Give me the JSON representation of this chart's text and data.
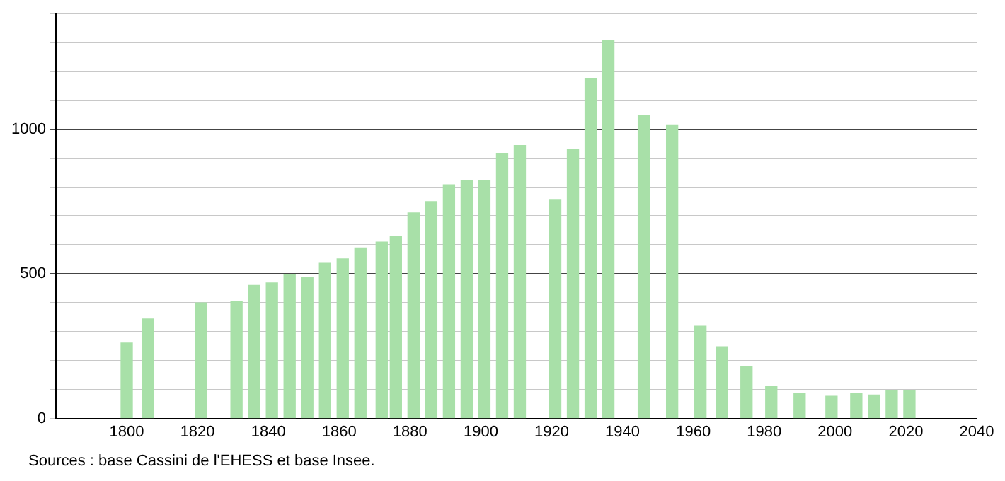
{
  "chart_data": {
    "type": "bar",
    "x": [
      1800,
      1806,
      1821,
      1831,
      1836,
      1841,
      1846,
      1851,
      1856,
      1861,
      1866,
      1872,
      1876,
      1881,
      1886,
      1891,
      1896,
      1901,
      1906,
      1911,
      1921,
      1926,
      1931,
      1936,
      1946,
      1954,
      1962,
      1968,
      1975,
      1982,
      1990,
      1999,
      2006,
      2011,
      2016,
      2021
    ],
    "values": [
      261,
      344,
      400,
      406,
      460,
      469,
      498,
      489,
      537,
      552,
      590,
      610,
      629,
      711,
      750,
      808,
      823,
      823,
      915,
      944,
      755,
      932,
      1176,
      1306,
      1047,
      1013,
      319,
      248,
      179,
      111,
      87,
      77,
      87,
      81,
      97,
      97
    ],
    "color": "#a8e0a8",
    "xlim": [
      1780,
      2040
    ],
    "xticks": [
      1800,
      1820,
      1840,
      1860,
      1880,
      1900,
      1920,
      1940,
      1960,
      1980,
      2000,
      2020,
      2040
    ],
    "ylim": [
      0,
      1400
    ],
    "yticks": [
      0,
      {
        "value": 100,
        "label": null
      },
      {
        "value": 200,
        "label": null
      },
      {
        "value": 300,
        "label": null
      },
      {
        "value": 400,
        "label": null
      },
      500,
      {
        "value": 600,
        "label": null
      },
      {
        "value": 700,
        "label": null
      },
      {
        "value": 800,
        "label": null
      },
      {
        "value": 900,
        "label": null
      },
      1000,
      {
        "value": 1100,
        "label": null
      },
      {
        "value": 1200,
        "label": null
      },
      {
        "value": 1300,
        "label": null
      },
      {
        "value": 1400,
        "label": null
      }
    ],
    "grid": "y",
    "annotations": [
      "Sources : base Cassini de l'EHESS et base Insee."
    ]
  }
}
